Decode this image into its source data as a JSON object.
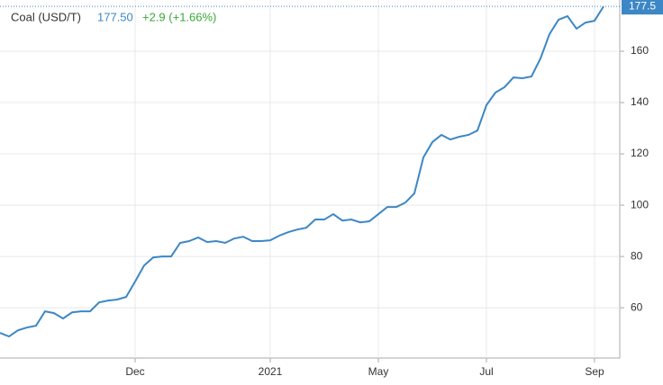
{
  "chart_data": {
    "type": "line",
    "title": "Coal (USD/T)",
    "price": "177.50",
    "change": "+2.9 (+1.66%)",
    "categories": [
      null,
      null,
      null,
      null,
      null,
      null,
      null,
      null,
      null,
      null,
      null,
      null,
      null,
      null,
      null,
      "Dec",
      null,
      null,
      null,
      null,
      null,
      null,
      null,
      null,
      null,
      null,
      null,
      null,
      null,
      null,
      "2021",
      null,
      null,
      null,
      null,
      null,
      null,
      null,
      null,
      null,
      null,
      null,
      "May",
      null,
      null,
      null,
      null,
      null,
      null,
      null,
      null,
      null,
      null,
      null,
      "Jul",
      null,
      null,
      null,
      null,
      null,
      null,
      null,
      null,
      null,
      null,
      null,
      "Sep",
      null
    ],
    "series": [
      {
        "name": "Coal",
        "color": "#3c87c6",
        "values": [
          50.2,
          48.8,
          51.2,
          52.3,
          53,
          58.6,
          57.9,
          55.8,
          58.2,
          58.6,
          58.6,
          62.1,
          62.8,
          63.2,
          64.2,
          70.2,
          76.5,
          79.6,
          80,
          80,
          85.3,
          86,
          87.4,
          85.6,
          86,
          85.3,
          87,
          87.7,
          86,
          86,
          86.3,
          88.1,
          89.5,
          90.5,
          91.2,
          94.4,
          94.4,
          96.5,
          94,
          94.4,
          93.3,
          93.7,
          96.5,
          99.3,
          99.3,
          101,
          104.6,
          118.6,
          124.6,
          127.4,
          125.6,
          126.7,
          127.4,
          129.1,
          139,
          143.9,
          146,
          149.8,
          149.5,
          150.2,
          157.2,
          166.7,
          172.3,
          173.7,
          168.8,
          171.2,
          171.9,
          177.5
        ]
      }
    ],
    "price_tag": 177.5,
    "ylim": [
      40.4,
      180
    ],
    "yticks": [
      60,
      80,
      100,
      120,
      140,
      160
    ],
    "grid": true
  }
}
